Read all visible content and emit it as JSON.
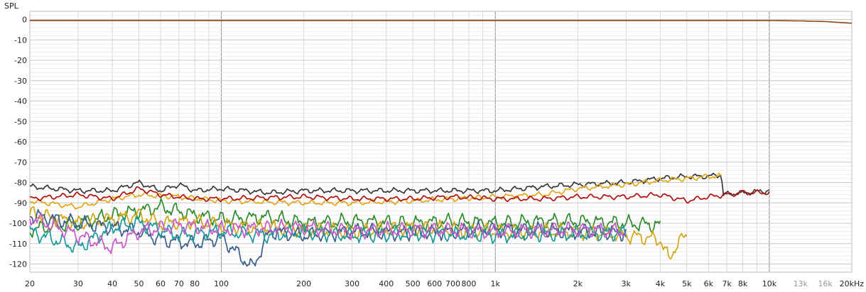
{
  "chart_data": {
    "type": "line",
    "title": "",
    "xlabel": "",
    "ylabel": "SPL",
    "xscale": "log",
    "xlim": [
      20,
      20000
    ],
    "ylim": [
      -124,
      4
    ],
    "grid": true,
    "y_ticks": [
      0,
      -10,
      -20,
      -30,
      -40,
      -50,
      -60,
      -70,
      -80,
      -90,
      -100,
      -110,
      -120
    ],
    "y_tick_labels": [
      "0",
      "-10",
      "-20",
      "-30",
      "-40",
      "-50",
      "-60",
      "-70",
      "-80",
      "-90",
      "-100",
      "-110",
      "-120"
    ],
    "x_ticks": [
      {
        "value": 20,
        "label": "20"
      },
      {
        "value": 30,
        "label": "30"
      },
      {
        "value": 40,
        "label": "40"
      },
      {
        "value": 50,
        "label": "50"
      },
      {
        "value": 60,
        "label": "60"
      },
      {
        "value": 70,
        "label": "70"
      },
      {
        "value": 80,
        "label": "80"
      },
      {
        "value": 100,
        "label": "100"
      },
      {
        "value": 200,
        "label": "200"
      },
      {
        "value": 300,
        "label": "300"
      },
      {
        "value": 400,
        "label": "400"
      },
      {
        "value": 500,
        "label": "500"
      },
      {
        "value": 600,
        "label": "600"
      },
      {
        "value": 700,
        "label": "700"
      },
      {
        "value": 800,
        "label": "800"
      },
      {
        "value": 1000,
        "label": "1k"
      },
      {
        "value": 2000,
        "label": "2k"
      },
      {
        "value": 3000,
        "label": "3k"
      },
      {
        "value": 4000,
        "label": "4k"
      },
      {
        "value": 5000,
        "label": "5k"
      },
      {
        "value": 6000,
        "label": "6k"
      },
      {
        "value": 7000,
        "label": "7k"
      },
      {
        "value": 8000,
        "label": "8k"
      },
      {
        "value": 10000,
        "label": "10k"
      },
      {
        "value": 13000,
        "label": "13k",
        "faint": true
      },
      {
        "value": 16000,
        "label": "16k",
        "faint": true
      },
      {
        "value": 20000,
        "label": "20kHz"
      }
    ],
    "series": [
      {
        "color": "#8b4513",
        "x": [
          20,
          50,
          100,
          300,
          1000,
          3000,
          10000,
          13000,
          16000,
          20000
        ],
        "y": [
          -0.5,
          -0.5,
          -0.5,
          -0.5,
          -0.5,
          -0.5,
          -0.5,
          -0.7,
          -1.0,
          -1.8
        ]
      },
      {
        "color": "#3a3a3a",
        "x": [
          20,
          30,
          40,
          50,
          60,
          70,
          80,
          100,
          150,
          200,
          300,
          500,
          700,
          1000,
          1500,
          2000,
          3000,
          4000,
          5000,
          6000,
          6700,
          6750,
          8000,
          10000
        ],
        "y": [
          -82,
          -84,
          -84,
          -80,
          -84,
          -81,
          -84,
          -83,
          -85,
          -84,
          -84,
          -84,
          -84,
          -84,
          -82,
          -81,
          -80,
          -78,
          -77,
          -77,
          -76,
          -86,
          -85,
          -84
        ]
      },
      {
        "color": "#e0a81a",
        "x": [
          20,
          30,
          40,
          50,
          70,
          100,
          200,
          300,
          500,
          700,
          1000,
          1500,
          2000,
          3000,
          4000,
          5000,
          6000,
          6700
        ],
        "y": [
          -89,
          -92,
          -88,
          -86,
          -87,
          -89,
          -90,
          -90,
          -89,
          -88,
          -87,
          -86,
          -83,
          -81,
          -79,
          -78,
          -77,
          -77
        ]
      },
      {
        "color": "#b01010",
        "x": [
          20,
          30,
          40,
          50,
          60,
          80,
          100,
          200,
          300,
          500,
          700,
          1000,
          1500,
          2000,
          3000,
          4000,
          5000,
          6000,
          7000,
          8000,
          10000
        ],
        "y": [
          -88,
          -86,
          -88,
          -83,
          -86,
          -88,
          -88,
          -87,
          -88,
          -88,
          -87,
          -88,
          -88,
          -87,
          -87,
          -86,
          -89,
          -87,
          -86,
          -85,
          -85
        ]
      },
      {
        "color": "#2e8b2e",
        "x": [
          20,
          30,
          40,
          50,
          60,
          80,
          100,
          150,
          200,
          300,
          500,
          700,
          1000,
          1500,
          2000,
          3000,
          4000
        ],
        "y": [
          -103,
          -100,
          -96,
          -94,
          -92,
          -96,
          -98,
          -97,
          -100,
          -99,
          -100,
          -99,
          -100,
          -99,
          -99,
          -100,
          -101
        ]
      },
      {
        "color": "#d2a617",
        "x": [
          20,
          30,
          40,
          50,
          60,
          80,
          100,
          200,
          300,
          500,
          1000,
          2000,
          3000,
          4000,
          4300,
          4600,
          5000
        ],
        "y": [
          -95,
          -100,
          -98,
          -96,
          -100,
          -99,
          -101,
          -103,
          -104,
          -102,
          -104,
          -104,
          -106,
          -108,
          -118,
          -110,
          -106
        ]
      },
      {
        "color": "#3a5f8a",
        "x": [
          20,
          30,
          40,
          50,
          60,
          80,
          100,
          130,
          150,
          200,
          300,
          500,
          1000,
          2000,
          3000
        ],
        "y": [
          -96,
          -100,
          -102,
          -104,
          -108,
          -110,
          -107,
          -122,
          -104,
          -106,
          -104,
          -105,
          -103,
          -104,
          -105
        ]
      },
      {
        "color": "#1a9a9a",
        "x": [
          20,
          30,
          40,
          50,
          70,
          100,
          150,
          200,
          300,
          500,
          1000,
          2000,
          3000
        ],
        "y": [
          -104,
          -112,
          -102,
          -100,
          -106,
          -104,
          -106,
          -104,
          -106,
          -105,
          -106,
          -105,
          -105
        ]
      },
      {
        "color": "#c85ac8",
        "x": [
          20,
          30,
          40,
          50,
          70,
          100,
          200,
          300,
          500,
          1000,
          2000,
          3000
        ],
        "y": [
          -97,
          -106,
          -112,
          -104,
          -101,
          -103,
          -102,
          -104,
          -103,
          -104,
          -103,
          -104
        ]
      }
    ]
  }
}
